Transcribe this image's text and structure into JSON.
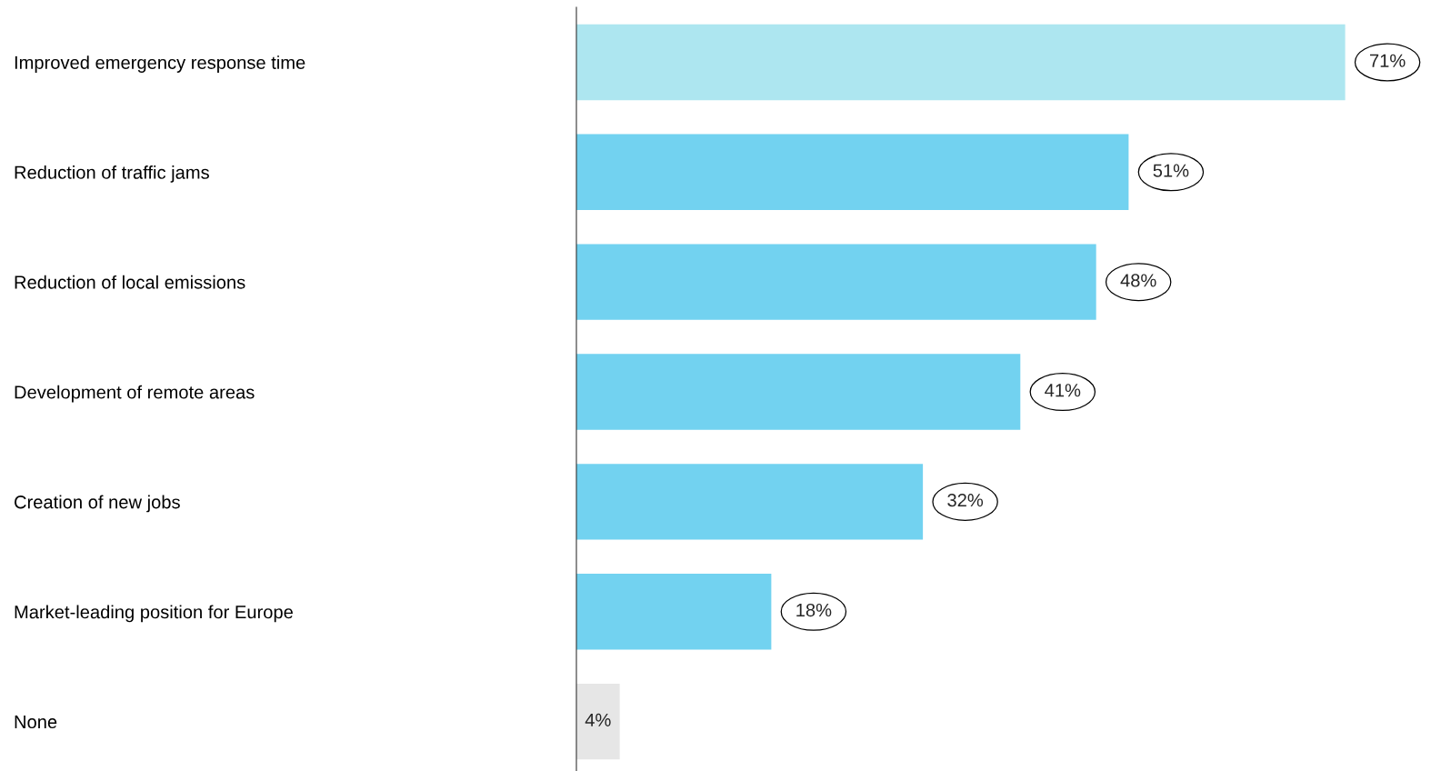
{
  "chart_data": {
    "type": "bar",
    "orientation": "horizontal",
    "categories": [
      "Improved emergency response time",
      "Reduction of traffic jams",
      "Reduction of local emissions",
      "Development of remote areas",
      "Creation of new jobs",
      "Market-leading position for Europe",
      "None"
    ],
    "values": [
      71,
      51,
      48,
      41,
      32,
      18,
      4
    ],
    "colors": [
      "#ade6f0",
      "#72d2f0",
      "#72d2f0",
      "#72d2f0",
      "#72d2f0",
      "#72d2f0",
      "#e6e6e6"
    ],
    "value_labels": [
      "71%",
      "51%",
      "48%",
      "41%",
      "32%",
      "18%",
      "4%"
    ],
    "grid": false,
    "legend": false
  }
}
